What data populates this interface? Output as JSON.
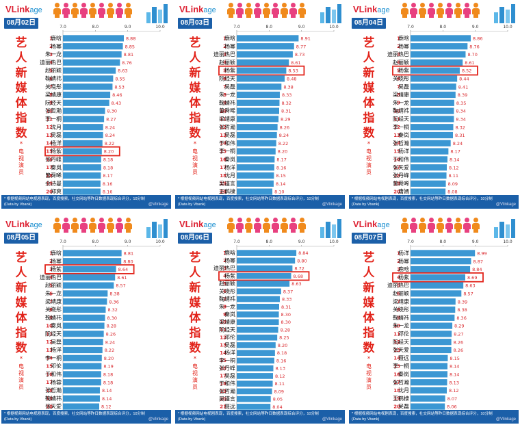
{
  "logo": {
    "main": "VLink",
    "sub": "age"
  },
  "vertical_title": [
    "艺",
    "人",
    "新",
    "媒",
    "体",
    "指",
    "数"
  ],
  "vertical_star": "*",
  "vertical_sub": [
    "电",
    "视",
    "演",
    "员"
  ],
  "footer_note": "* 根据视频网站电视剧表现，百度搜索，社交网站等昨日数据表现综合评分，10分制",
  "footer_source": "(Data by Vbank)",
  "weibo": "@Vlinkage",
  "colors": {
    "bar": "#3b97d3",
    "value": "#d9262b",
    "highlight": "#e2231a",
    "date_bg": "#1b5fa8",
    "footer_bg": "#1b5fa8"
  },
  "chart_data": [
    {
      "type": "bar",
      "date": "08月02日",
      "xticks": [
        "7.0",
        "8.0",
        "9.0",
        "10.0"
      ],
      "xlim": [
        7,
        10
      ],
      "highlight_rank": 15,
      "categories": [
        "鹿晗",
        "杨幂",
        "朱一龙",
        "迪丽热巴",
        "赵丽颖",
        "鞠婧祎",
        "关晓彤",
        "梁靖康",
        "阮经天",
        "张哲瀚",
        "李一桐",
        "沈月",
        "吴磊",
        "杨洋",
        "杨紫",
        "张丹峰",
        "秦岚",
        "曾舜晞",
        "佘诗曼",
        "郑爽"
      ],
      "values": [
        8.88,
        8.85,
        8.81,
        8.76,
        8.63,
        8.55,
        8.53,
        8.46,
        8.43,
        8.3,
        8.27,
        8.24,
        8.24,
        8.22,
        8.2,
        8.18,
        8.18,
        8.17,
        8.16,
        8.16
      ]
    },
    {
      "type": "bar",
      "date": "08月03日",
      "xticks": [
        "7.0",
        "8.0",
        "9.0",
        "10.0"
      ],
      "xlim": [
        7,
        10
      ],
      "highlight_rank": 5,
      "categories": [
        "鹿晗",
        "杨幂",
        "迪丽热巴",
        "赵丽颖",
        "杨紫",
        "阮经天",
        "吴磊",
        "朱一龙",
        "鞠婧祎",
        "曾舜晞",
        "梁靖康",
        "张哲瀚",
        "吴磊",
        "于和伟",
        "李一桐",
        "秦岚",
        "杨洋",
        "沈月",
        "吴谨言",
        "王鹤棣"
      ],
      "values": [
        8.91,
        8.77,
        8.73,
        8.61,
        8.53,
        8.48,
        8.38,
        8.33,
        8.32,
        8.31,
        8.29,
        8.26,
        8.24,
        8.22,
        8.2,
        8.17,
        8.16,
        8.15,
        8.14,
        8.1
      ]
    },
    {
      "type": "bar",
      "date": "08月04日",
      "xticks": [
        "7.0",
        "8.0",
        "9.0",
        "10.0"
      ],
      "xlim": [
        7,
        10
      ],
      "highlight_rank": 5,
      "categories": [
        "鹿晗",
        "杨幂",
        "迪丽热巴",
        "赵丽颖",
        "杨紫",
        "关晓彤",
        "吴磊",
        "梁靖康",
        "朱一龙",
        "鞠婧祎",
        "阮经天",
        "李一桐",
        "秦岚",
        "张哲瀚",
        "杨洋",
        "于和伟",
        "张天爱",
        "张丹峰",
        "曾舜晞",
        "唐嫣"
      ],
      "values": [
        8.86,
        8.76,
        8.7,
        8.61,
        8.52,
        8.44,
        8.41,
        8.39,
        8.35,
        8.34,
        8.34,
        8.32,
        8.31,
        8.24,
        8.17,
        8.14,
        8.12,
        8.11,
        8.09,
        8.08
      ]
    },
    {
      "type": "bar",
      "date": "08月05日",
      "xticks": [
        "7.0",
        "8.0",
        "9.0",
        "10.0"
      ],
      "xlim": [
        7,
        10
      ],
      "highlight_rank": 3,
      "categories": [
        "鹿晗",
        "杨幂",
        "杨紫",
        "迪丽热巴",
        "赵丽颖",
        "朱一龙",
        "梁靖康",
        "关晓彤",
        "鞠婧祎",
        "秦岚",
        "阮经天",
        "吴磊",
        "杨洋",
        "李一桐",
        "邓伦",
        "于和伟",
        "杨蓉",
        "张哲瀚",
        "鞠婧祎",
        "张天爱"
      ],
      "values": [
        8.81,
        8.8,
        8.64,
        8.61,
        8.57,
        8.38,
        8.36,
        8.32,
        8.3,
        8.28,
        8.26,
        8.24,
        8.22,
        8.2,
        8.19,
        8.18,
        8.18,
        8.14,
        8.14,
        8.12
      ]
    },
    {
      "type": "bar",
      "date": "08月06日",
      "xticks": [
        "7.0",
        "8.0",
        "9.0",
        "10.0"
      ],
      "xlim": [
        7,
        10
      ],
      "highlight_rank": 4,
      "categories": [
        "鹿晗",
        "杨幂",
        "迪丽热巴",
        "杨紫",
        "赵丽颖",
        "关晓彤",
        "鞠婧祎",
        "朱一龙",
        "秦岚",
        "梁靖康",
        "阮经天",
        "邓伦",
        "吴磊",
        "杨洋",
        "李一桐",
        "张丹峰",
        "吴磊",
        "于和伟",
        "张哲瀚",
        "吴谨言",
        "聂远"
      ],
      "values": [
        8.84,
        8.8,
        8.72,
        8.68,
        8.63,
        8.37,
        8.33,
        8.31,
        8.3,
        8.3,
        8.28,
        8.25,
        8.2,
        8.18,
        8.16,
        8.13,
        8.12,
        8.11,
        8.09,
        8.05,
        8.04
      ]
    },
    {
      "type": "bar",
      "date": "08月07日",
      "xticks": [
        "7.0",
        "8.0",
        "9.0",
        "10.0"
      ],
      "xlim": [
        7,
        10
      ],
      "highlight_rank": 4,
      "categories": [
        "杨洋",
        "杨幂",
        "鹿晗",
        "杨紫",
        "迪丽热巴",
        "赵丽颖",
        "梁靖康",
        "关晓彤",
        "鞠婧祎",
        "朱一龙",
        "邓伦",
        "阮经天",
        "张天爱",
        "聂远",
        "李一桐",
        "秦岚",
        "张哲瀚",
        "沈月",
        "王鹤棣",
        "吴磊"
      ],
      "values": [
        8.99,
        8.87,
        8.84,
        8.69,
        8.63,
        8.57,
        8.39,
        8.38,
        8.36,
        8.29,
        8.27,
        8.26,
        8.26,
        8.15,
        8.14,
        8.14,
        8.13,
        8.12,
        8.07,
        8.06
      ]
    }
  ]
}
